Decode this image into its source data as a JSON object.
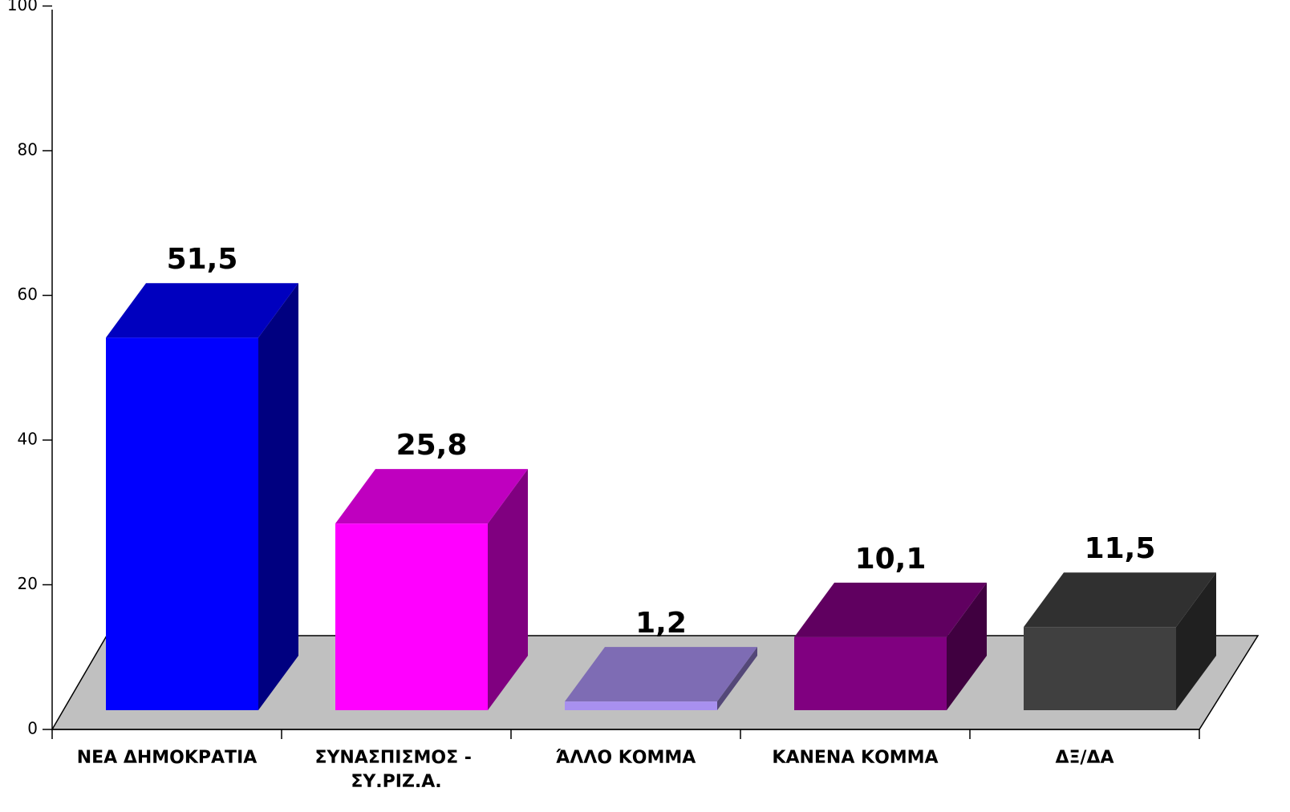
{
  "chart_data": {
    "type": "bar3d",
    "categories": [
      "ΝΕΑ ΔΗΜΟΚΡΑΤΙΑ",
      "ΣΥΝΑΣΠΙΣΜΟΣ - ΣΥ.ΡΙΖ.Α.",
      "ΆΛΛΟ ΚΟΜΜΑ",
      "ΚΑΝΕΝΑ ΚΟΜΜΑ",
      "ΔΞ/ΔΑ"
    ],
    "values": [
      51.5,
      25.8,
      1.2,
      10.1,
      11.5
    ],
    "value_labels": [
      "51,5",
      "25,8",
      "1,2",
      "10,1",
      "11,5"
    ],
    "colors": [
      "#0000ff",
      "#ff00ff",
      "#a890f0",
      "#800080",
      "#404040"
    ],
    "ylim": [
      0,
      100
    ],
    "yticks": [
      0,
      20,
      40,
      60,
      80,
      100
    ]
  }
}
